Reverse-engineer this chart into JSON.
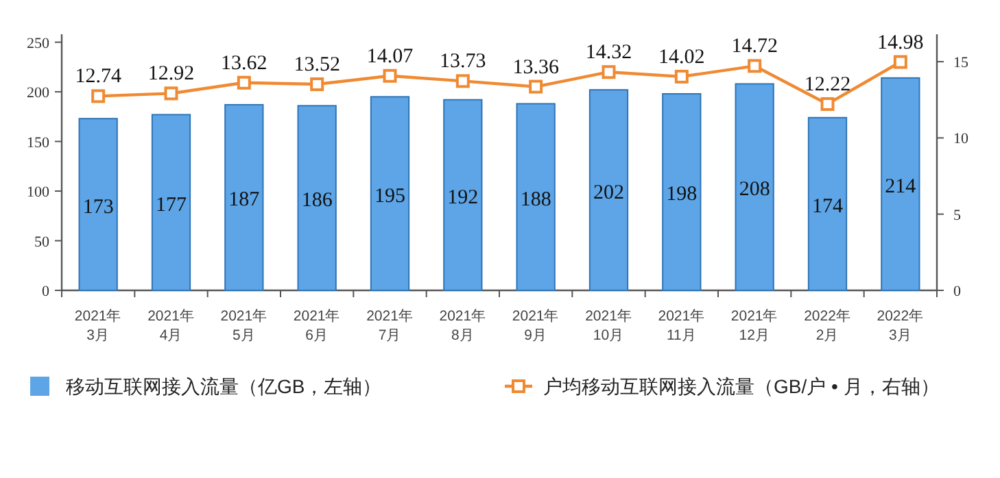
{
  "chart_data": {
    "type": "bar",
    "categories": [
      "2021年\n3月",
      "2021年\n4月",
      "2021年\n5月",
      "2021年\n6月",
      "2021年\n7月",
      "2021年\n8月",
      "2021年\n9月",
      "2021年\n10月",
      "2021年\n11月",
      "2021年\n12月",
      "2022年\n2月",
      "2022年\n3月"
    ],
    "series": [
      {
        "name": "移动互联网接入流量（亿GB，左轴）",
        "color": "#5da5e6",
        "values": [
          173,
          177,
          187,
          186,
          195,
          192,
          188,
          202,
          198,
          208,
          174,
          214
        ]
      },
      {
        "name": "户均移动互联网接入流量（GB/户 • 月，右轴）",
        "type": "line",
        "axis": "y2",
        "color": "#f08a32",
        "marker": "square",
        "values": [
          12.74,
          12.92,
          13.62,
          13.52,
          14.07,
          13.73,
          13.36,
          14.32,
          14.02,
          14.72,
          12.22,
          14.98
        ]
      }
    ],
    "ylim": [
      0,
      258
    ],
    "yticks": [
      0,
      50,
      100,
      150,
      200,
      250
    ],
    "y2lim": [
      0,
      16.8
    ],
    "y2ticks": [
      0,
      5,
      10,
      15
    ],
    "data_labels": true,
    "legend": "bottom",
    "grid": false
  }
}
